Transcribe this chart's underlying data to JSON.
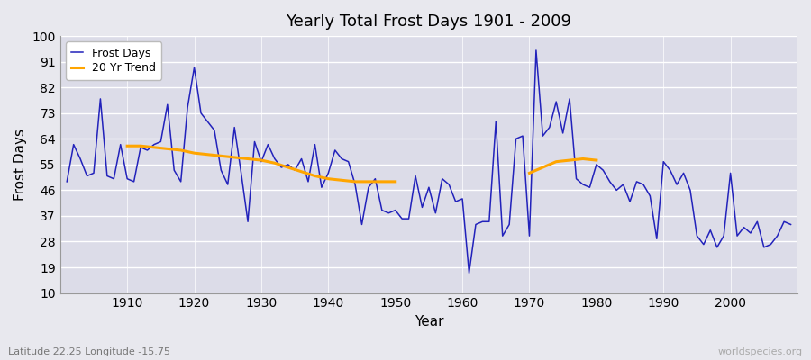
{
  "title": "Yearly Total Frost Days 1901 - 2009",
  "xlabel": "Year",
  "ylabel": "Frost Days",
  "subtitle": "Latitude 22.25 Longitude -15.75",
  "watermark": "worldspecies.org",
  "ylim": [
    10,
    100
  ],
  "yticks": [
    10,
    19,
    28,
    37,
    46,
    55,
    64,
    73,
    82,
    91,
    100
  ],
  "xlim": [
    1900,
    2010
  ],
  "xticks": [
    1910,
    1920,
    1930,
    1940,
    1950,
    1960,
    1970,
    1980,
    1990,
    2000
  ],
  "bg_color": "#dcdce8",
  "line_color": "#2222bb",
  "trend_color": "#ffa500",
  "fig_bg": "#e8e8ee",
  "years": [
    1901,
    1902,
    1903,
    1904,
    1905,
    1906,
    1907,
    1908,
    1909,
    1910,
    1911,
    1912,
    1913,
    1914,
    1915,
    1916,
    1917,
    1918,
    1919,
    1920,
    1921,
    1922,
    1923,
    1924,
    1925,
    1926,
    1927,
    1928,
    1929,
    1930,
    1931,
    1932,
    1933,
    1934,
    1935,
    1936,
    1937,
    1938,
    1939,
    1940,
    1941,
    1942,
    1943,
    1944,
    1945,
    1946,
    1947,
    1948,
    1949,
    1950,
    1951,
    1952,
    1953,
    1954,
    1955,
    1956,
    1957,
    1958,
    1959,
    1960,
    1961,
    1962,
    1963,
    1964,
    1965,
    1966,
    1967,
    1968,
    1969,
    1970,
    1971,
    1972,
    1973,
    1974,
    1975,
    1976,
    1977,
    1978,
    1979,
    1980,
    1981,
    1982,
    1983,
    1984,
    1985,
    1986,
    1987,
    1988,
    1989,
    1990,
    1991,
    1992,
    1993,
    1994,
    1995,
    1996,
    1997,
    1998,
    1999,
    2000,
    2001,
    2002,
    2003,
    2004,
    2005,
    2006,
    2007,
    2008,
    2009
  ],
  "frost_days": [
    49,
    62,
    57,
    51,
    52,
    78,
    51,
    50,
    62,
    50,
    49,
    61,
    60,
    62,
    63,
    76,
    53,
    49,
    75,
    89,
    73,
    70,
    67,
    53,
    48,
    68,
    52,
    35,
    63,
    56,
    62,
    57,
    54,
    55,
    53,
    57,
    49,
    62,
    47,
    52,
    60,
    57,
    56,
    48,
    34,
    47,
    50,
    39,
    38,
    39,
    36,
    36,
    51,
    40,
    47,
    38,
    50,
    48,
    42,
    43,
    17,
    34,
    35,
    35,
    70,
    30,
    34,
    64,
    65,
    30,
    95,
    65,
    68,
    77,
    66,
    78,
    50,
    48,
    47,
    55,
    53,
    49,
    46,
    48,
    42,
    49,
    48,
    44,
    29,
    56,
    53,
    48,
    52,
    46,
    30,
    27,
    32,
    26,
    30,
    52,
    30,
    33,
    31,
    35,
    26,
    27,
    30,
    35,
    34
  ],
  "trend_seg1_years": [
    1910,
    1912,
    1914,
    1916,
    1918,
    1920,
    1922,
    1924,
    1926,
    1928,
    1930,
    1932,
    1934,
    1936,
    1938,
    1940,
    1942,
    1944,
    1946,
    1948,
    1950
  ],
  "trend_seg1_vals": [
    61.5,
    61.5,
    61.0,
    60.5,
    60.0,
    59.0,
    58.5,
    58.0,
    57.5,
    57.0,
    56.5,
    55.5,
    54.0,
    52.5,
    51.0,
    50.0,
    49.5,
    49.0,
    49.0,
    49.0,
    49.0
  ],
  "trend_seg2_years": [
    1970,
    1972,
    1974,
    1976,
    1978,
    1980
  ],
  "trend_seg2_vals": [
    52.0,
    54.0,
    56.0,
    56.5,
    57.0,
    56.5
  ]
}
